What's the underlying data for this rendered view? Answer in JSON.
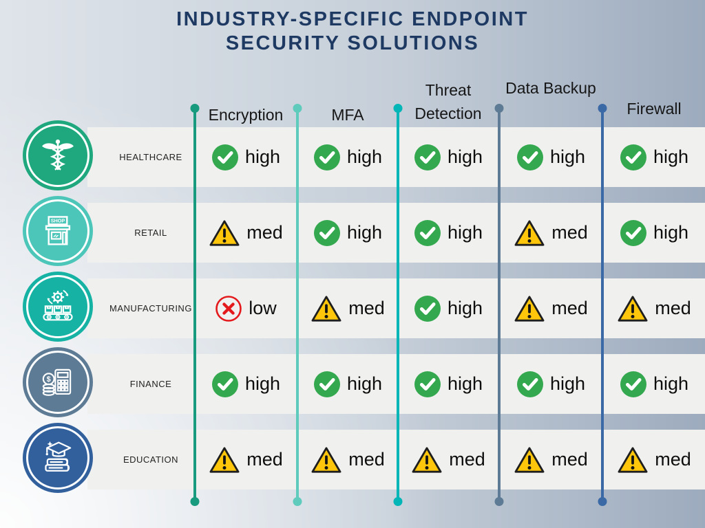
{
  "title": {
    "line1": "INDUSTRY-SPECIFIC ENDPOINT",
    "line2": "SECURITY SOLUTIONS"
  },
  "colors": {
    "title": "#1e3a63",
    "row_band": "#f0f0ee",
    "check": "#34a84f",
    "warning_fill": "#ffc60b",
    "warning_border": "#1e1e1e",
    "cross": "#e4191c"
  },
  "columns": [
    {
      "label": "Encryption",
      "line_color": "#179a7d"
    },
    {
      "label": "MFA",
      "line_color": "#5ecbbc"
    },
    {
      "label": "Threat Detection",
      "line_color": "#02b5b6"
    },
    {
      "label": "Data Backup",
      "line_color": "#5d7b94"
    },
    {
      "label": "Firewall",
      "line_color": "#3a69a6"
    }
  ],
  "rows": [
    {
      "label": "HEALTHCARE",
      "icon": "caduceus-icon",
      "circle_color": "#1fa87d",
      "cells": [
        {
          "status": "check",
          "level": "high"
        },
        {
          "status": "check",
          "level": "high"
        },
        {
          "status": "check",
          "level": "high"
        },
        {
          "status": "check",
          "level": "high"
        },
        {
          "status": "check",
          "level": "high"
        }
      ]
    },
    {
      "label": "RETAIL",
      "icon": "storefront-icon",
      "circle_color": "#4cc6b9",
      "shop_sign": "SHOP",
      "cells": [
        {
          "status": "warning",
          "level": "med"
        },
        {
          "status": "check",
          "level": "high"
        },
        {
          "status": "check",
          "level": "high"
        },
        {
          "status": "warning",
          "level": "med"
        },
        {
          "status": "check",
          "level": "high"
        }
      ]
    },
    {
      "label": "MANUFACTURING",
      "icon": "factory-conveyor-icon",
      "circle_color": "#16b2a4",
      "cells": [
        {
          "status": "cross",
          "level": "low"
        },
        {
          "status": "warning",
          "level": "med"
        },
        {
          "status": "check",
          "level": "high"
        },
        {
          "status": "warning",
          "level": "med"
        },
        {
          "status": "warning",
          "level": "med"
        }
      ]
    },
    {
      "label": "FINANCE",
      "icon": "calculator-coins-icon",
      "circle_color": "#5d7b94",
      "cells": [
        {
          "status": "check",
          "level": "high"
        },
        {
          "status": "check",
          "level": "high"
        },
        {
          "status": "check",
          "level": "high"
        },
        {
          "status": "check",
          "level": "high"
        },
        {
          "status": "check",
          "level": "high"
        }
      ]
    },
    {
      "label": "EDUCATION",
      "icon": "graduation-cap-books-icon",
      "circle_color": "#31609d",
      "cells": [
        {
          "status": "warning",
          "level": "med"
        },
        {
          "status": "warning",
          "level": "med"
        },
        {
          "status": "warning",
          "level": "med"
        },
        {
          "status": "warning",
          "level": "med"
        },
        {
          "status": "warning",
          "level": "med"
        }
      ]
    }
  ],
  "chart_data": {
    "type": "table",
    "title": "Industry-Specific Endpoint Security Solutions",
    "columns": [
      "Encryption",
      "MFA",
      "Threat Detection",
      "Data Backup",
      "Firewall"
    ],
    "rows": [
      "Healthcare",
      "Retail",
      "Manufacturing",
      "Finance",
      "Education"
    ],
    "values": [
      [
        "high",
        "high",
        "high",
        "high",
        "high"
      ],
      [
        "med",
        "high",
        "high",
        "med",
        "high"
      ],
      [
        "low",
        "med",
        "high",
        "med",
        "med"
      ],
      [
        "high",
        "high",
        "high",
        "high",
        "high"
      ],
      [
        "med",
        "med",
        "med",
        "med",
        "med"
      ]
    ],
    "legend": {
      "check": "high",
      "warning": "med",
      "cross": "low"
    }
  }
}
